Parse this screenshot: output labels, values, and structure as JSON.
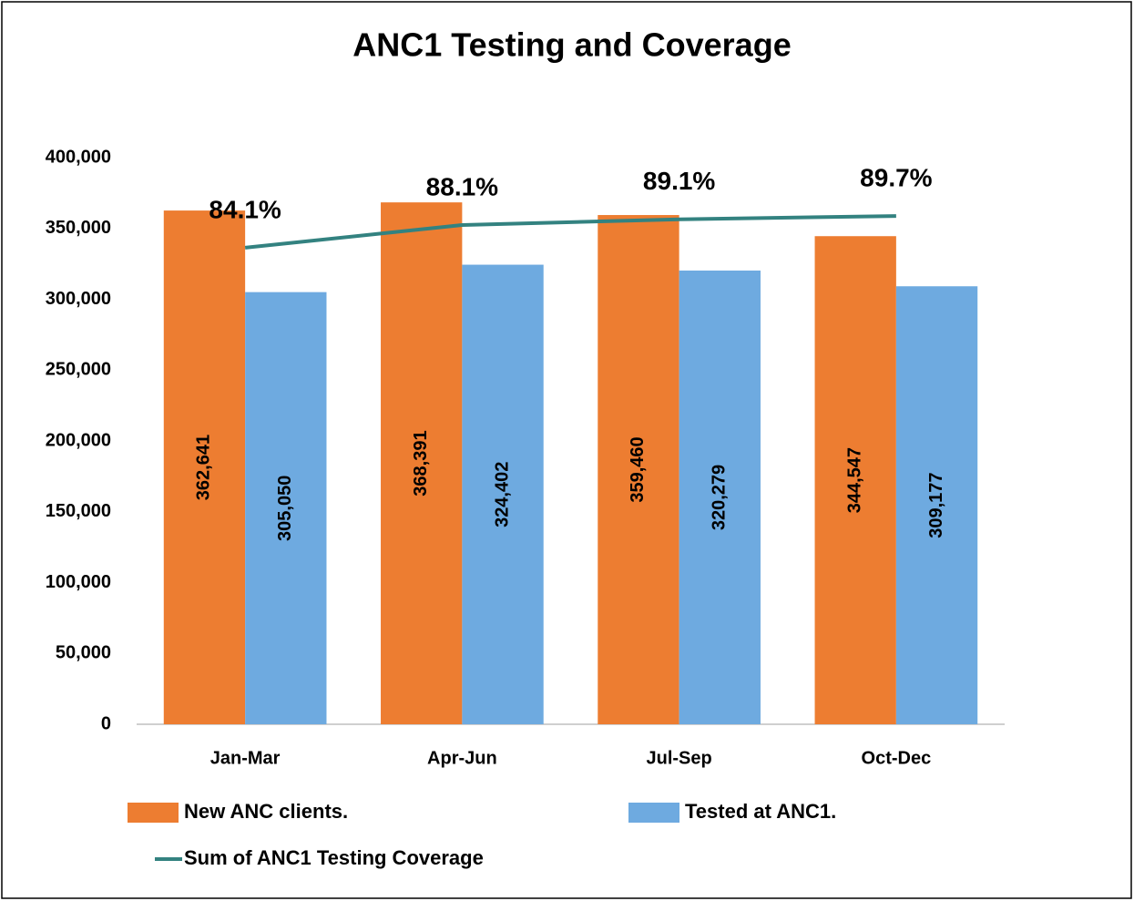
{
  "chart_data": {
    "type": "bar",
    "title": "ANC1 Testing and Coverage",
    "categories": [
      "Jan-Mar",
      "Apr-Jun",
      "Jul-Sep",
      "Oct-Dec"
    ],
    "series": [
      {
        "name": "New ANC clients.",
        "type": "bar",
        "color": "#ed7d31",
        "values": [
          362641,
          368391,
          359460,
          344547
        ],
        "value_labels": [
          "362,641",
          "368,391",
          "359,460",
          "344,547"
        ]
      },
      {
        "name": "Tested at ANC1.",
        "type": "bar",
        "color": "#6eaae0",
        "values": [
          305050,
          324402,
          320279,
          309177
        ],
        "value_labels": [
          "305,050",
          "324,402",
          "320,279",
          "309,177"
        ]
      },
      {
        "name": "Sum of ANC1 Testing Coverage",
        "type": "line",
        "axis": "y2",
        "color": "#338280",
        "values": [
          84.1,
          88.1,
          89.1,
          89.7
        ],
        "value_labels": [
          "84.1%",
          "88.1%",
          "89.1%",
          "89.7%"
        ]
      }
    ],
    "ylim": [
      0,
      400000
    ],
    "yticks": [
      0,
      {
        "value": 50000,
        "label": "50,000"
      },
      {
        "value": 100000,
        "label": "100,000"
      },
      {
        "value": 150000,
        "label": "150,000"
      },
      {
        "value": 200000,
        "label": "200,000"
      },
      {
        "value": 250000,
        "label": "250,000"
      },
      {
        "value": 300000,
        "label": "300,000"
      },
      {
        "value": 350000,
        "label": "350,000"
      },
      {
        "value": 400000,
        "label": "400,000"
      }
    ],
    "y2lim": [
      0,
      100
    ],
    "grid": false,
    "legend": "bottom"
  }
}
